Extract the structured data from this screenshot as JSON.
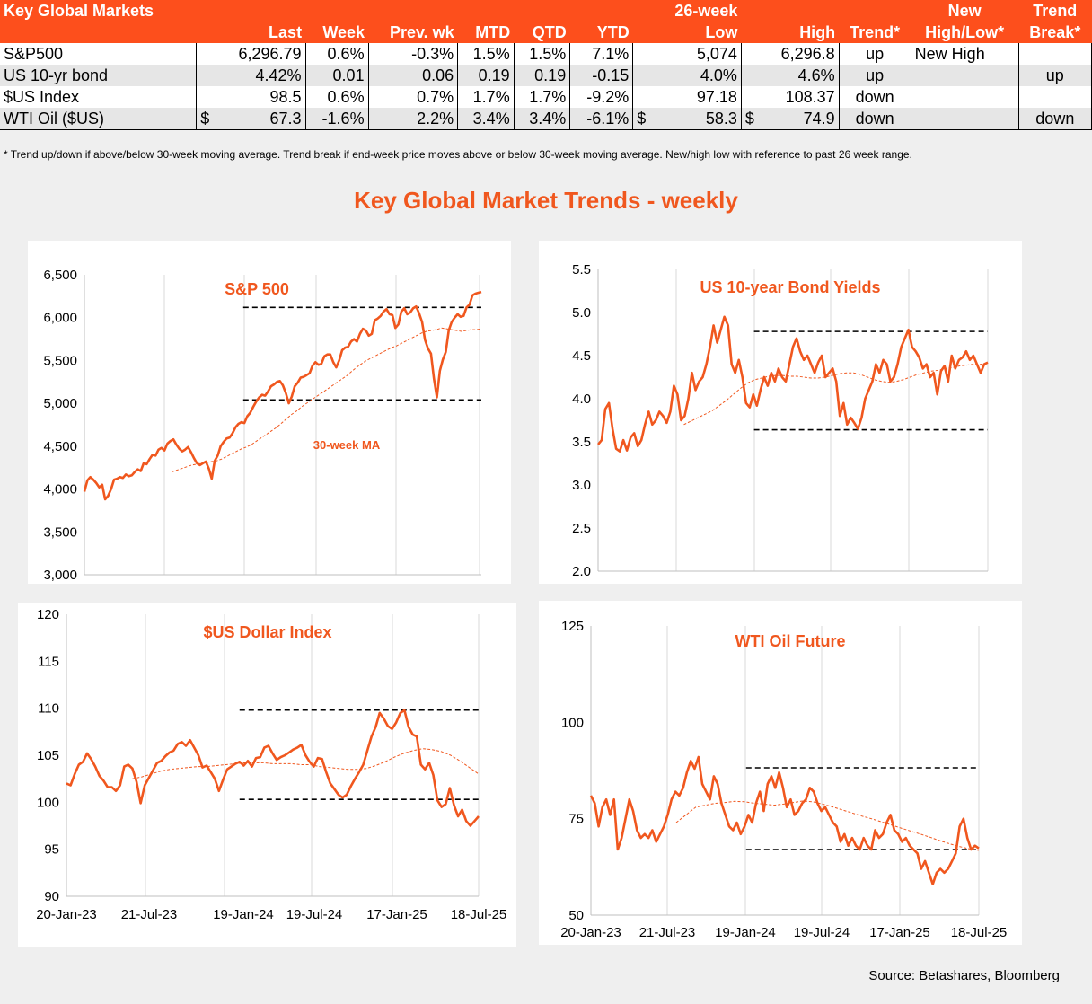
{
  "table": {
    "title": "Key Global Markets",
    "headers_row1": {
      "low_high": "26-week",
      "new": "New",
      "trend_break": "Trend"
    },
    "headers_row2": [
      "Last",
      "Week",
      "Prev. wk",
      "MTD",
      "QTD",
      "YTD",
      "Low",
      "High",
      "Trend*",
      "High/Low*",
      "Break*"
    ],
    "rows": [
      {
        "name": "S&P500",
        "last_prefix": "",
        "last": "6,296.79",
        "week": "0.6%",
        "prev": "-0.3%",
        "mtd": "1.5%",
        "qtd": "1.5%",
        "ytd": "7.1%",
        "low_prefix": "",
        "low": "5,074",
        "high_prefix": "",
        "high": "6,296.8",
        "trend": "up",
        "new": "New High",
        "break": ""
      },
      {
        "name": "US 10-yr bond",
        "last_prefix": "",
        "last": "4.42%",
        "week": "0.01",
        "prev": "0.06",
        "mtd": "0.19",
        "qtd": "0.19",
        "ytd": "-0.15",
        "low_prefix": "",
        "low": "4.0%",
        "high_prefix": "",
        "high": "4.6%",
        "trend": "up",
        "new": "",
        "break": "up"
      },
      {
        "name": "$US Index",
        "last_prefix": "",
        "last": "98.5",
        "week": "0.6%",
        "prev": "0.7%",
        "mtd": "1.7%",
        "qtd": "1.7%",
        "ytd": "-9.2%",
        "low_prefix": "",
        "low": "97.18",
        "high_prefix": "",
        "high": "108.37",
        "trend": "down",
        "new": "",
        "break": ""
      },
      {
        "name": "WTI Oil ($US)",
        "last_prefix": "$",
        "last": "67.3",
        "week": "-1.6%",
        "prev": "2.2%",
        "mtd": "3.4%",
        "qtd": "3.4%",
        "ytd": "-6.1%",
        "low_prefix": "$",
        "low": "58.3",
        "high_prefix": "$",
        "high": "74.9",
        "trend": "down",
        "new": "",
        "break": "down"
      }
    ],
    "footnote": "*  Trend up/down if above/below 30-week moving average. Trend break if end-week price moves above or below 30-week moving average.  New/high low with reference to past 26 week range."
  },
  "main_title": "Key Global Market Trends - weekly",
  "source": "Source:  Betashares, Bloomberg",
  "colors": {
    "accent": "#fd4f1c",
    "line": "#f0571e",
    "title": "#f0571e"
  },
  "chart_data": [
    {
      "type": "line",
      "title": "S&P 500",
      "annotation": "30-week MA",
      "x_range": [
        "20-Jan-23",
        "18-Jul-25"
      ],
      "ylim": [
        3000,
        6500
      ],
      "yticks": [
        "3,000",
        "3,500",
        "4,000",
        "4,500",
        "5,000",
        "5,500",
        "6,000",
        "6,500"
      ],
      "ytick_values": [
        3000,
        3500,
        4000,
        4500,
        5000,
        5500,
        6000,
        6500
      ],
      "xticks": [],
      "hlines": [
        6120,
        5040
      ],
      "hline_span": [
        0.4,
        1.0
      ],
      "ma_start": 0.22,
      "series": [
        {
          "values": [
            3970,
            4100,
            4140,
            4110,
            4070,
            4020,
            4050,
            3880,
            3920,
            4000,
            4110,
            4120,
            4140,
            4130,
            4170,
            4150,
            4160,
            4200,
            4230,
            4210,
            4300,
            4290,
            4350,
            4400,
            4390,
            4460,
            4480,
            4450,
            4530,
            4560,
            4580,
            4520,
            4470,
            4440,
            4460,
            4490,
            4430,
            4360,
            4300,
            4280,
            4300,
            4320,
            4240,
            4120,
            4330,
            4390,
            4500,
            4550,
            4590,
            4600,
            4650,
            4720,
            4760,
            4780,
            4770,
            4850,
            4890,
            4960,
            5020,
            5070,
            5100,
            5090,
            5140,
            5200,
            5220,
            5250,
            5260,
            5210,
            5120,
            5000,
            5080,
            5200,
            5240,
            5300,
            5310,
            5330,
            5350,
            5440,
            5480,
            5450,
            5460,
            5550,
            5570,
            5570,
            5480,
            5420,
            5500,
            5620,
            5650,
            5660,
            5720,
            5750,
            5720,
            5810,
            5870,
            5850,
            5790,
            5810,
            5970,
            5990,
            6020,
            6070,
            6100,
            6040,
            6030,
            5880,
            5920,
            6070,
            6110,
            6040,
            6060,
            6110,
            6130,
            6050,
            5950,
            5740,
            5640,
            5580,
            5290,
            5070,
            5380,
            5510,
            5600,
            5850,
            5950,
            6000,
            6040,
            6010,
            6020,
            6120,
            6150,
            6260,
            6280,
            6290,
            6300
          ]
        },
        {
          "values": [
            4200,
            4220,
            4240,
            4260,
            4280,
            4290,
            4300,
            4310,
            4320,
            4330,
            4350,
            4380,
            4410,
            4440,
            4470,
            4490,
            4520,
            4560,
            4600,
            4640,
            4680,
            4720,
            4770,
            4820,
            4870,
            4910,
            4960,
            5000,
            5040,
            5080,
            5120,
            5160,
            5200,
            5240,
            5280,
            5320,
            5370,
            5420,
            5460,
            5500,
            5530,
            5560,
            5590,
            5620,
            5650,
            5670,
            5700,
            5730,
            5760,
            5790,
            5820,
            5840,
            5850,
            5860,
            5880,
            5870,
            5860,
            5850,
            5840,
            5850,
            5860,
            5860,
            5870
          ]
        }
      ]
    },
    {
      "type": "line",
      "title": "US 10-year Bond Yields",
      "x_range": [
        "20-Jan-23",
        "18-Jul-25"
      ],
      "ylim": [
        2.0,
        5.5
      ],
      "yticks": [
        "2.0",
        "2.5",
        "3.0",
        "3.5",
        "4.0",
        "4.5",
        "5.0",
        "5.5"
      ],
      "ytick_values": [
        2.0,
        2.5,
        3.0,
        3.5,
        4.0,
        4.5,
        5.0,
        5.5
      ],
      "xticks": [],
      "hlines": [
        4.78,
        3.64
      ],
      "hline_span": [
        0.4,
        1.0
      ],
      "ma_start": 0.22,
      "series": [
        {
          "values": [
            3.47,
            3.52,
            3.88,
            3.95,
            3.65,
            3.42,
            3.39,
            3.52,
            3.4,
            3.55,
            3.6,
            3.45,
            3.52,
            3.7,
            3.85,
            3.7,
            3.75,
            3.85,
            3.8,
            3.72,
            3.85,
            4.15,
            4.05,
            3.75,
            3.8,
            4.0,
            4.3,
            4.1,
            4.2,
            4.25,
            4.4,
            4.6,
            4.85,
            4.65,
            4.8,
            4.95,
            4.85,
            4.4,
            4.3,
            4.45,
            4.25,
            3.95,
            3.9,
            4.05,
            3.92,
            4.1,
            4.25,
            4.15,
            4.3,
            4.2,
            4.35,
            4.25,
            4.2,
            4.4,
            4.6,
            4.7,
            4.55,
            4.45,
            4.5,
            4.4,
            4.3,
            4.42,
            4.5,
            4.25,
            4.3,
            4.35,
            4.2,
            3.8,
            3.95,
            3.7,
            3.78,
            3.72,
            3.65,
            3.78,
            4.0,
            4.1,
            4.2,
            4.4,
            4.3,
            4.45,
            4.4,
            4.2,
            4.25,
            4.4,
            4.6,
            4.7,
            4.8,
            4.6,
            4.55,
            4.48,
            4.35,
            4.4,
            4.25,
            4.3,
            4.05,
            4.32,
            4.38,
            4.2,
            4.5,
            4.35,
            4.45,
            4.48,
            4.55,
            4.45,
            4.5,
            4.4,
            4.3,
            4.4,
            4.42
          ]
        },
        {
          "values": [
            3.7,
            3.74,
            3.78,
            3.82,
            3.86,
            3.92,
            3.98,
            4.05,
            4.12,
            4.18,
            4.22,
            4.24,
            4.26,
            4.27,
            4.27,
            4.26,
            4.26,
            4.25,
            4.24,
            4.24,
            4.25,
            4.27,
            4.29,
            4.3,
            4.3,
            4.28,
            4.25,
            4.22,
            4.2,
            4.19,
            4.2,
            4.22,
            4.25,
            4.28,
            4.3,
            4.32,
            4.33,
            4.35,
            4.36,
            4.38,
            4.39,
            4.4,
            4.4,
            4.41
          ]
        }
      ]
    },
    {
      "type": "line",
      "title": "$US  Dollar Index",
      "x_range": [
        "20-Jan-23",
        "18-Jul-25"
      ],
      "ylim": [
        90,
        120
      ],
      "yticks": [
        "90",
        "95",
        "100",
        "105",
        "110",
        "115",
        "120"
      ],
      "ytick_values": [
        90,
        95,
        100,
        105,
        110,
        115,
        120
      ],
      "xticks": [
        "20-Jan-23",
        "21-Jul-23",
        "19-Jan-24",
        "19-Jul-24",
        "17-Jan-25",
        "18-Jul-25"
      ],
      "hlines": [
        109.8,
        100.3
      ],
      "hline_span": [
        0.42,
        1.0
      ],
      "ma_start": 0.16,
      "series": [
        {
          "values": [
            102.0,
            101.8,
            103.0,
            104.0,
            104.3,
            105.2,
            104.6,
            103.8,
            102.8,
            102.3,
            101.6,
            101.6,
            101.2,
            101.8,
            103.8,
            104.0,
            103.6,
            102.2,
            99.9,
            101.8,
            102.6,
            103.4,
            104.2,
            104.4,
            104.9,
            105.3,
            105.5,
            106.2,
            106.4,
            106.0,
            106.6,
            105.8,
            105.0,
            103.7,
            103.9,
            103.2,
            102.5,
            101.2,
            102.4,
            103.5,
            103.8,
            104.1,
            104.3,
            103.9,
            104.4,
            103.8,
            104.7,
            104.8,
            105.8,
            106.0,
            105.2,
            104.5,
            104.8,
            105.0,
            105.3,
            105.6,
            105.8,
            106.1,
            105.0,
            104.3,
            103.8,
            104.7,
            104.6,
            103.2,
            102.0,
            101.4,
            100.8,
            100.5,
            100.8,
            101.7,
            102.5,
            103.2,
            104.0,
            105.5,
            107.0,
            108.0,
            109.5,
            108.9,
            108.1,
            107.8,
            108.5,
            109.5,
            109.8,
            108.0,
            107.2,
            107.0,
            104.0,
            103.5,
            104.2,
            102.9,
            100.2,
            99.5,
            99.8,
            101.5,
            99.7,
            98.5,
            99.2,
            98.0,
            97.5,
            98.0,
            98.5
          ]
        },
        {
          "values": [
            102.5,
            102.7,
            103.0,
            103.3,
            103.5,
            103.6,
            103.7,
            103.8,
            103.8,
            103.9,
            104.0,
            104.1,
            104.2,
            104.2,
            104.2,
            104.1,
            104.1,
            104.1,
            104.0,
            104.0,
            103.8,
            103.7,
            103.6,
            103.5,
            103.5,
            103.6,
            103.9,
            104.3,
            104.8,
            105.2,
            105.5,
            105.7,
            105.6,
            105.4,
            105.0,
            104.4,
            103.7,
            103.0
          ]
        }
      ]
    },
    {
      "type": "line",
      "title": "WTI Oil Future",
      "x_range": [
        "20-Jan-23",
        "18-Jul-25"
      ],
      "ylim": [
        50,
        125
      ],
      "yticks": [
        "50",
        "75",
        "100",
        "125"
      ],
      "ytick_values": [
        50,
        75,
        100,
        125
      ],
      "xticks": [
        "20-Jan-23",
        "21-Jul-23",
        "19-Jan-24",
        "19-Jul-24",
        "17-Jan-25",
        "18-Jul-25"
      ],
      "hlines": [
        88.2,
        67.0
      ],
      "hline_span": [
        0.4,
        1.0
      ],
      "ma_start": 0.22,
      "series": [
        {
          "values": [
            81,
            79,
            73,
            78,
            80,
            76,
            80,
            67,
            70,
            75,
            80,
            77,
            72,
            70,
            71,
            70,
            72,
            69,
            71,
            73,
            76,
            80,
            82,
            81,
            83,
            87,
            90,
            88,
            91,
            84,
            82,
            80,
            86,
            84,
            79,
            76,
            73,
            72,
            74,
            71,
            73,
            76,
            74,
            79,
            82,
            77,
            84,
            86,
            83,
            87,
            83,
            78,
            80,
            76,
            77,
            79,
            80,
            83,
            82,
            79,
            77,
            78,
            76,
            74,
            73,
            69,
            71,
            68,
            70,
            68,
            67,
            70,
            68,
            67,
            72,
            70,
            71,
            74,
            76,
            72,
            71,
            69,
            70,
            68,
            67,
            66,
            62,
            64,
            61,
            58,
            61,
            62,
            61,
            62,
            64,
            66,
            73,
            75,
            70,
            67,
            68,
            67.3
          ]
        },
        {
          "values": [
            74,
            76,
            78,
            78.5,
            79,
            79.2,
            79.5,
            79.4,
            79.0,
            78.8,
            78.5,
            78.8,
            79.2,
            79.6,
            79.4,
            78.8,
            78.1,
            77.3,
            76.5,
            75.7,
            75.0,
            74.2,
            73.4,
            72.6,
            71.8,
            71.0,
            70.2,
            69.3,
            68.5,
            67.8,
            67.2,
            66.8
          ]
        }
      ]
    }
  ]
}
